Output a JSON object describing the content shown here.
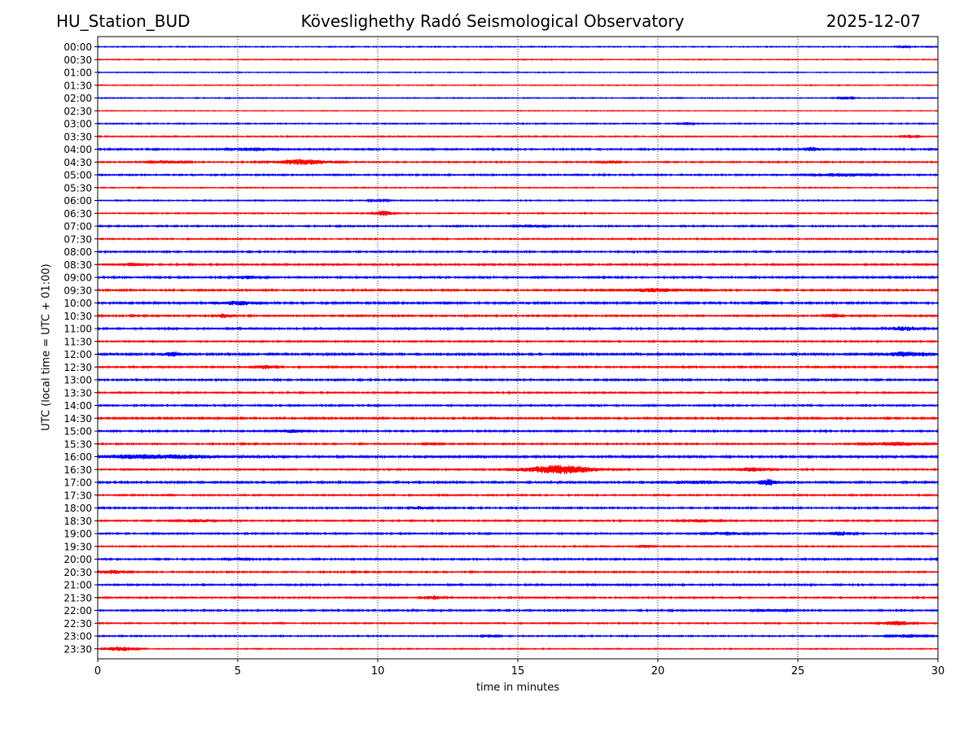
{
  "header": {
    "station": "HU_Station_BUD",
    "observatory": "Köveslighethy Radó Seismological Observatory",
    "date": "2025-12-07"
  },
  "chart_data": {
    "type": "line",
    "title": "Köveslighethy Radó Seismological Observatory",
    "xlabel": "time in minutes",
    "ylabel": "UTC (local time = UTC + 01:00)",
    "xlim": [
      0,
      30
    ],
    "xticks": [
      0,
      5,
      10,
      15,
      20,
      25,
      30
    ],
    "grid": "vertical dotted at x ticks",
    "trace_colors": [
      "#0000ff",
      "#ff0000"
    ],
    "rows": [
      "00:00",
      "00:30",
      "01:00",
      "01:30",
      "02:00",
      "02:30",
      "03:00",
      "03:30",
      "04:00",
      "04:30",
      "05:00",
      "05:30",
      "06:00",
      "06:30",
      "07:00",
      "07:30",
      "08:00",
      "08:30",
      "09:00",
      "09:30",
      "10:00",
      "10:30",
      "11:00",
      "11:30",
      "12:00",
      "12:30",
      "13:00",
      "13:30",
      "14:00",
      "14:30",
      "15:00",
      "15:30",
      "16:00",
      "16:30",
      "17:00",
      "17:30",
      "18:00",
      "18:30",
      "19:00",
      "19:30",
      "20:00",
      "20:30",
      "21:00",
      "21:30",
      "22:00",
      "22:30",
      "23:00",
      "23:30"
    ],
    "row_noise": [
      0.35,
      0.3,
      0.3,
      0.3,
      0.35,
      0.25,
      0.4,
      0.4,
      0.55,
      0.45,
      0.5,
      0.35,
      0.4,
      0.4,
      0.5,
      0.45,
      0.55,
      0.55,
      0.6,
      0.55,
      0.65,
      0.55,
      0.6,
      0.5,
      0.7,
      0.55,
      0.6,
      0.5,
      0.55,
      0.6,
      0.55,
      0.5,
      0.7,
      0.5,
      0.65,
      0.5,
      0.55,
      0.5,
      0.55,
      0.45,
      0.55,
      0.5,
      0.55,
      0.5,
      0.55,
      0.45,
      0.45,
      0.35
    ],
    "events": [
      {
        "row": "00:00",
        "minute": 28.8,
        "amplitude": 1.4,
        "duration": 0.3
      },
      {
        "row": "02:00",
        "minute": 26.7,
        "amplitude": 1.4,
        "duration": 0.4
      },
      {
        "row": "03:00",
        "minute": 21.0,
        "amplitude": 1.6,
        "duration": 0.4
      },
      {
        "row": "03:30",
        "minute": 29.0,
        "amplitude": 1.4,
        "duration": 0.4
      },
      {
        "row": "04:00",
        "minute": 5.5,
        "amplitude": 1.6,
        "duration": 1.2
      },
      {
        "row": "04:00",
        "minute": 25.5,
        "amplitude": 2.0,
        "duration": 0.4
      },
      {
        "row": "04:30",
        "minute": 7.3,
        "amplitude": 2.8,
        "duration": 1.5
      },
      {
        "row": "04:30",
        "minute": 2.5,
        "amplitude": 1.4,
        "duration": 1.0
      },
      {
        "row": "04:30",
        "minute": 18.3,
        "amplitude": 1.4,
        "duration": 0.5
      },
      {
        "row": "05:00",
        "minute": 26.5,
        "amplitude": 1.5,
        "duration": 1.5
      },
      {
        "row": "06:00",
        "minute": 10.0,
        "amplitude": 1.3,
        "duration": 0.5
      },
      {
        "row": "06:30",
        "minute": 10.2,
        "amplitude": 2.6,
        "duration": 0.5
      },
      {
        "row": "07:00",
        "minute": 15.5,
        "amplitude": 1.4,
        "duration": 0.8
      },
      {
        "row": "08:30",
        "minute": 1.3,
        "amplitude": 1.6,
        "duration": 0.6
      },
      {
        "row": "09:00",
        "minute": 5.3,
        "amplitude": 1.6,
        "duration": 0.6
      },
      {
        "row": "09:30",
        "minute": 19.8,
        "amplitude": 1.8,
        "duration": 2.0
      },
      {
        "row": "10:00",
        "minute": 5.0,
        "amplitude": 2.0,
        "duration": 1.0
      },
      {
        "row": "10:00",
        "minute": 23.8,
        "amplitude": 1.6,
        "duration": 0.5
      },
      {
        "row": "10:30",
        "minute": 4.5,
        "amplitude": 2.0,
        "duration": 0.5
      },
      {
        "row": "10:30",
        "minute": 26.3,
        "amplitude": 2.0,
        "duration": 0.4
      },
      {
        "row": "11:00",
        "minute": 28.8,
        "amplitude": 2.0,
        "duration": 0.8
      },
      {
        "row": "12:00",
        "minute": 2.7,
        "amplitude": 2.2,
        "duration": 0.5
      },
      {
        "row": "12:00",
        "minute": 29.0,
        "amplitude": 2.2,
        "duration": 1.5
      },
      {
        "row": "12:30",
        "minute": 6.0,
        "amplitude": 1.8,
        "duration": 0.5
      },
      {
        "row": "15:00",
        "minute": 7.0,
        "amplitude": 1.6,
        "duration": 0.8
      },
      {
        "row": "15:30",
        "minute": 28.5,
        "amplitude": 1.8,
        "duration": 1.5
      },
      {
        "row": "15:30",
        "minute": 12.0,
        "amplitude": 1.4,
        "duration": 0.4
      },
      {
        "row": "16:00",
        "minute": 2.0,
        "amplitude": 2.0,
        "duration": 4.0
      },
      {
        "row": "16:30",
        "minute": 16.5,
        "amplitude": 4.5,
        "duration": 2.0
      },
      {
        "row": "16:30",
        "minute": 23.3,
        "amplitude": 2.0,
        "duration": 1.0
      },
      {
        "row": "17:00",
        "minute": 23.9,
        "amplitude": 3.0,
        "duration": 0.6
      },
      {
        "row": "17:00",
        "minute": 21.5,
        "amplitude": 1.4,
        "duration": 2.0
      },
      {
        "row": "18:00",
        "minute": 11.5,
        "amplitude": 1.4,
        "duration": 0.6
      },
      {
        "row": "18:30",
        "minute": 3.5,
        "amplitude": 1.4,
        "duration": 1.0
      },
      {
        "row": "18:30",
        "minute": 21.5,
        "amplitude": 1.4,
        "duration": 1.0
      },
      {
        "row": "19:00",
        "minute": 26.5,
        "amplitude": 1.8,
        "duration": 0.8
      },
      {
        "row": "19:00",
        "minute": 22.5,
        "amplitude": 1.5,
        "duration": 1.0
      },
      {
        "row": "19:30",
        "minute": 19.6,
        "amplitude": 1.4,
        "duration": 0.4
      },
      {
        "row": "20:00",
        "minute": 5.0,
        "amplitude": 1.4,
        "duration": 0.5
      },
      {
        "row": "20:30",
        "minute": 0.5,
        "amplitude": 1.8,
        "duration": 0.8
      },
      {
        "row": "21:30",
        "minute": 12.0,
        "amplitude": 1.8,
        "duration": 0.6
      },
      {
        "row": "22:00",
        "minute": 24.0,
        "amplitude": 1.4,
        "duration": 0.8
      },
      {
        "row": "22:30",
        "minute": 28.5,
        "amplitude": 2.2,
        "duration": 0.8
      },
      {
        "row": "23:00",
        "minute": 14.0,
        "amplitude": 1.4,
        "duration": 0.4
      },
      {
        "row": "23:00",
        "minute": 29.0,
        "amplitude": 1.5,
        "duration": 1.0
      },
      {
        "row": "23:30",
        "minute": 0.8,
        "amplitude": 2.2,
        "duration": 0.8
      }
    ]
  }
}
